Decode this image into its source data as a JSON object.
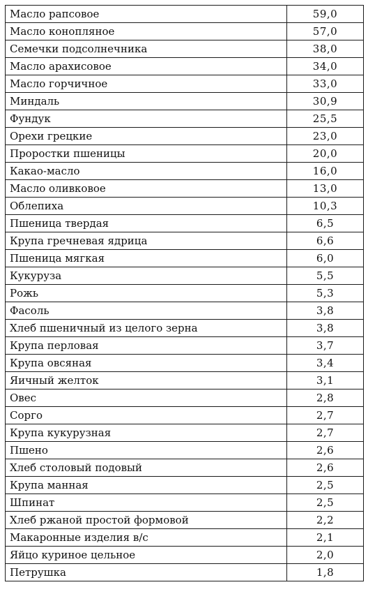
{
  "table": {
    "rows": [
      {
        "name": "Масло рапсовое",
        "value": "59,0"
      },
      {
        "name": "Масло конопляное",
        "value": "57,0"
      },
      {
        "name": "Семечки подсолнечника",
        "value": "38,0"
      },
      {
        "name": "Масло арахисовое",
        "value": "34,0"
      },
      {
        "name": "Масло горчичное",
        "value": "33,0"
      },
      {
        "name": "Миндаль",
        "value": "30,9"
      },
      {
        "name": "Фундук",
        "value": "25,5"
      },
      {
        "name": "Орехи грецкие",
        "value": "23,0"
      },
      {
        "name": "Проростки пшеницы",
        "value": "20,0"
      },
      {
        "name": "Какао-масло",
        "value": "16,0"
      },
      {
        "name": "Масло оливковое",
        "value": "13,0"
      },
      {
        "name": "Облепиха",
        "value": "10,3"
      },
      {
        "name": "Пшеница твердая",
        "value": "6,5"
      },
      {
        "name": "Крупа гречневая ядрица",
        "value": "6,6"
      },
      {
        "name": "Пшеница мягкая",
        "value": "6,0"
      },
      {
        "name": "Кукуруза",
        "value": "5,5"
      },
      {
        "name": "Рожь",
        "value": "5,3"
      },
      {
        "name": "Фасоль",
        "value": "3,8"
      },
      {
        "name": "Хлеб пшеничный из целого зерна",
        "value": "3,8"
      },
      {
        "name": "Крупа перловая",
        "value": "3,7"
      },
      {
        "name": "Крупа овсяная",
        "value": "3,4"
      },
      {
        "name": "Яичный желток",
        "value": "3,1"
      },
      {
        "name": "Овес",
        "value": "2,8"
      },
      {
        "name": "Сорго",
        "value": "2,7"
      },
      {
        "name": "Крупа кукурузная",
        "value": "2,7"
      },
      {
        "name": "Пшено",
        "value": "2,6"
      },
      {
        "name": "Хлеб столовый подовый",
        "value": "2,6"
      },
      {
        "name": "Крупа манная",
        "value": "2,5"
      },
      {
        "name": "Шпинат",
        "value": "2,5"
      },
      {
        "name": "Хлеб ржаной простой формовой",
        "value": "2,2"
      },
      {
        "name": "Макаронные изделия в/с",
        "value": "2,1"
      },
      {
        "name": "Яйцо куриное цельное",
        "value": "2,0"
      },
      {
        "name": "Петрушка",
        "value": "1,8"
      }
    ]
  }
}
